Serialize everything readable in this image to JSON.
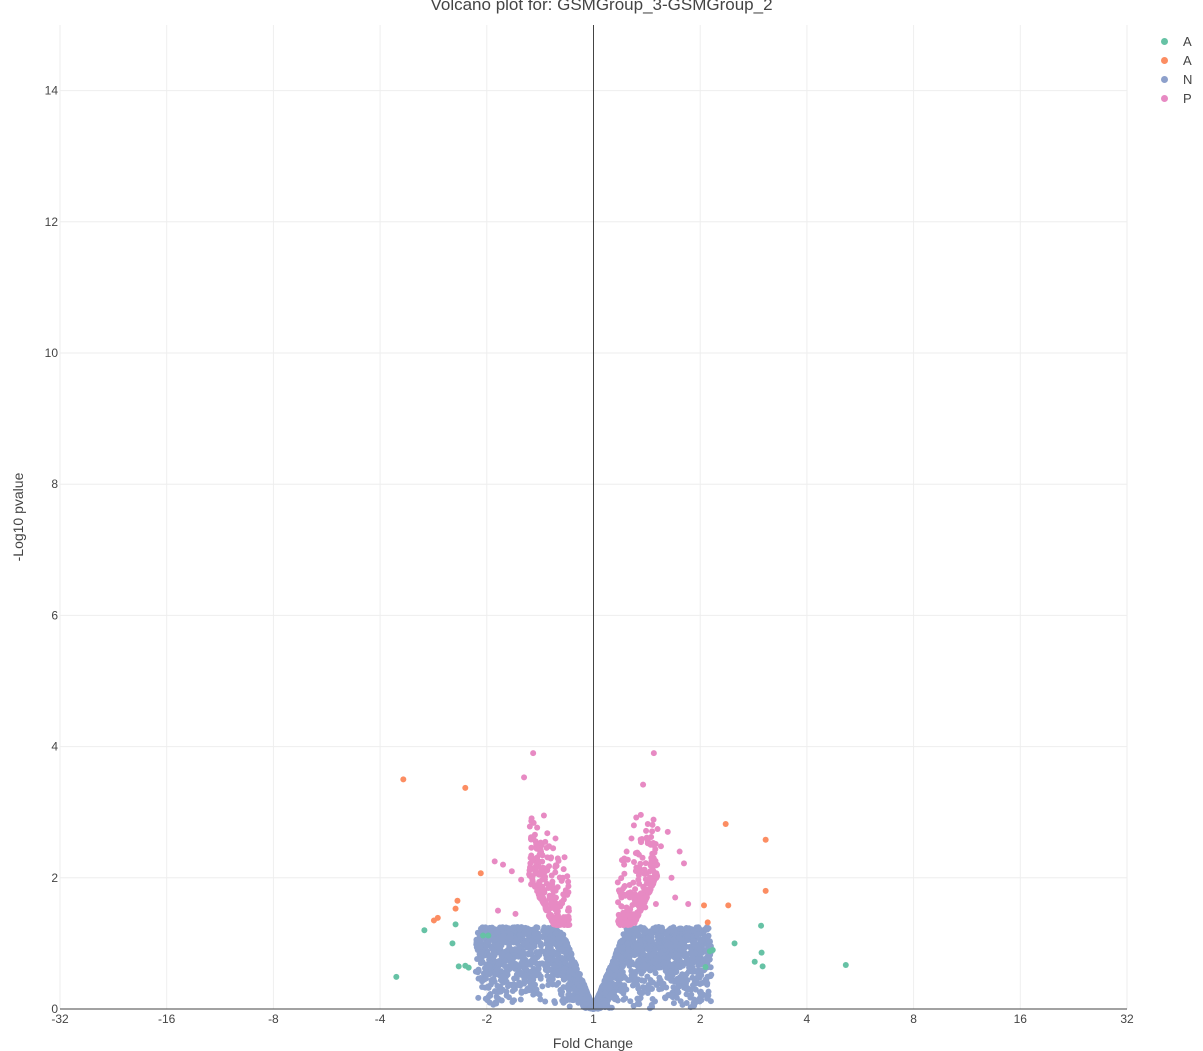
{
  "chart_data": {
    "type": "scatter",
    "title": "Volcano plot for: GSMGroup_3-GSMGroup_2",
    "xlabel": "Fold Change",
    "ylabel": "-Log10 pvalue",
    "x_scale": "log2",
    "xlim": [
      -32,
      32
    ],
    "ylim": [
      0,
      15
    ],
    "x_tick_labels": [
      "-32",
      "-16",
      "-8",
      "-4",
      "-2",
      "1",
      "2",
      "4",
      "8",
      "16",
      "32"
    ],
    "y_tick_labels": [
      "0",
      "2",
      "4",
      "6",
      "8",
      "10",
      "12",
      "14"
    ],
    "grid": true,
    "legend_position": "top-right",
    "series": [
      {
        "name": "A",
        "color": "#66c2a5",
        "x": [
          -3.6,
          -3.0,
          -2.5,
          -2.45,
          -2.4,
          -2.3,
          -2.25,
          -2.05,
          -1.98,
          2.07,
          2.13,
          2.17,
          2.5,
          2.85,
          2.97,
          2.98,
          3.0,
          5.15
        ],
        "y": [
          0.49,
          1.2,
          1.0,
          1.29,
          0.65,
          0.66,
          0.63,
          1.12,
          1.12,
          0.64,
          0.88,
          0.9,
          1.0,
          0.72,
          1.27,
          0.86,
          0.65,
          0.67
        ]
      },
      {
        "name": "A",
        "color": "#fc8d62",
        "x": [
          -3.44,
          -2.82,
          -2.75,
          -2.45,
          -2.42,
          -2.3,
          -2.08,
          2.05,
          2.1,
          2.36,
          2.4,
          3.06,
          3.06
        ],
        "y": [
          3.5,
          1.35,
          1.39,
          1.53,
          1.65,
          3.37,
          2.07,
          1.58,
          1.32,
          2.82,
          1.58,
          2.58,
          1.8
        ]
      },
      {
        "name": "N",
        "color": "#8da0cb",
        "x": [],
        "y": []
      },
      {
        "name": "P",
        "color": "#e78ac3",
        "x": [
          -1.48,
          -1.38,
          -1.57,
          -1.28,
          -1.35,
          -1.9,
          -1.8,
          -1.7,
          -1.6,
          -1.5,
          -1.4,
          -1.3,
          -1.22,
          -1.25,
          -1.42,
          -1.66,
          -1.86,
          -1.2,
          -1.18,
          1.48,
          1.38,
          1.36,
          1.32,
          1.3,
          1.24,
          1.22,
          1.28,
          1.55,
          1.62,
          1.75,
          1.8,
          1.66,
          1.45,
          1.7,
          1.85,
          1.2,
          1.4,
          1.5
        ],
        "y": [
          3.9,
          2.95,
          3.53,
          2.6,
          2.68,
          2.25,
          2.2,
          2.1,
          1.97,
          1.9,
          2.5,
          2.45,
          2.0,
          1.6,
          1.7,
          1.45,
          1.5,
          1.75,
          1.5,
          3.9,
          3.42,
          2.96,
          2.92,
          2.8,
          2.4,
          2.2,
          2.6,
          2.48,
          2.7,
          2.4,
          2.22,
          2.0,
          1.9,
          1.7,
          1.6,
          1.7,
          1.55,
          1.6
        ]
      }
    ]
  }
}
